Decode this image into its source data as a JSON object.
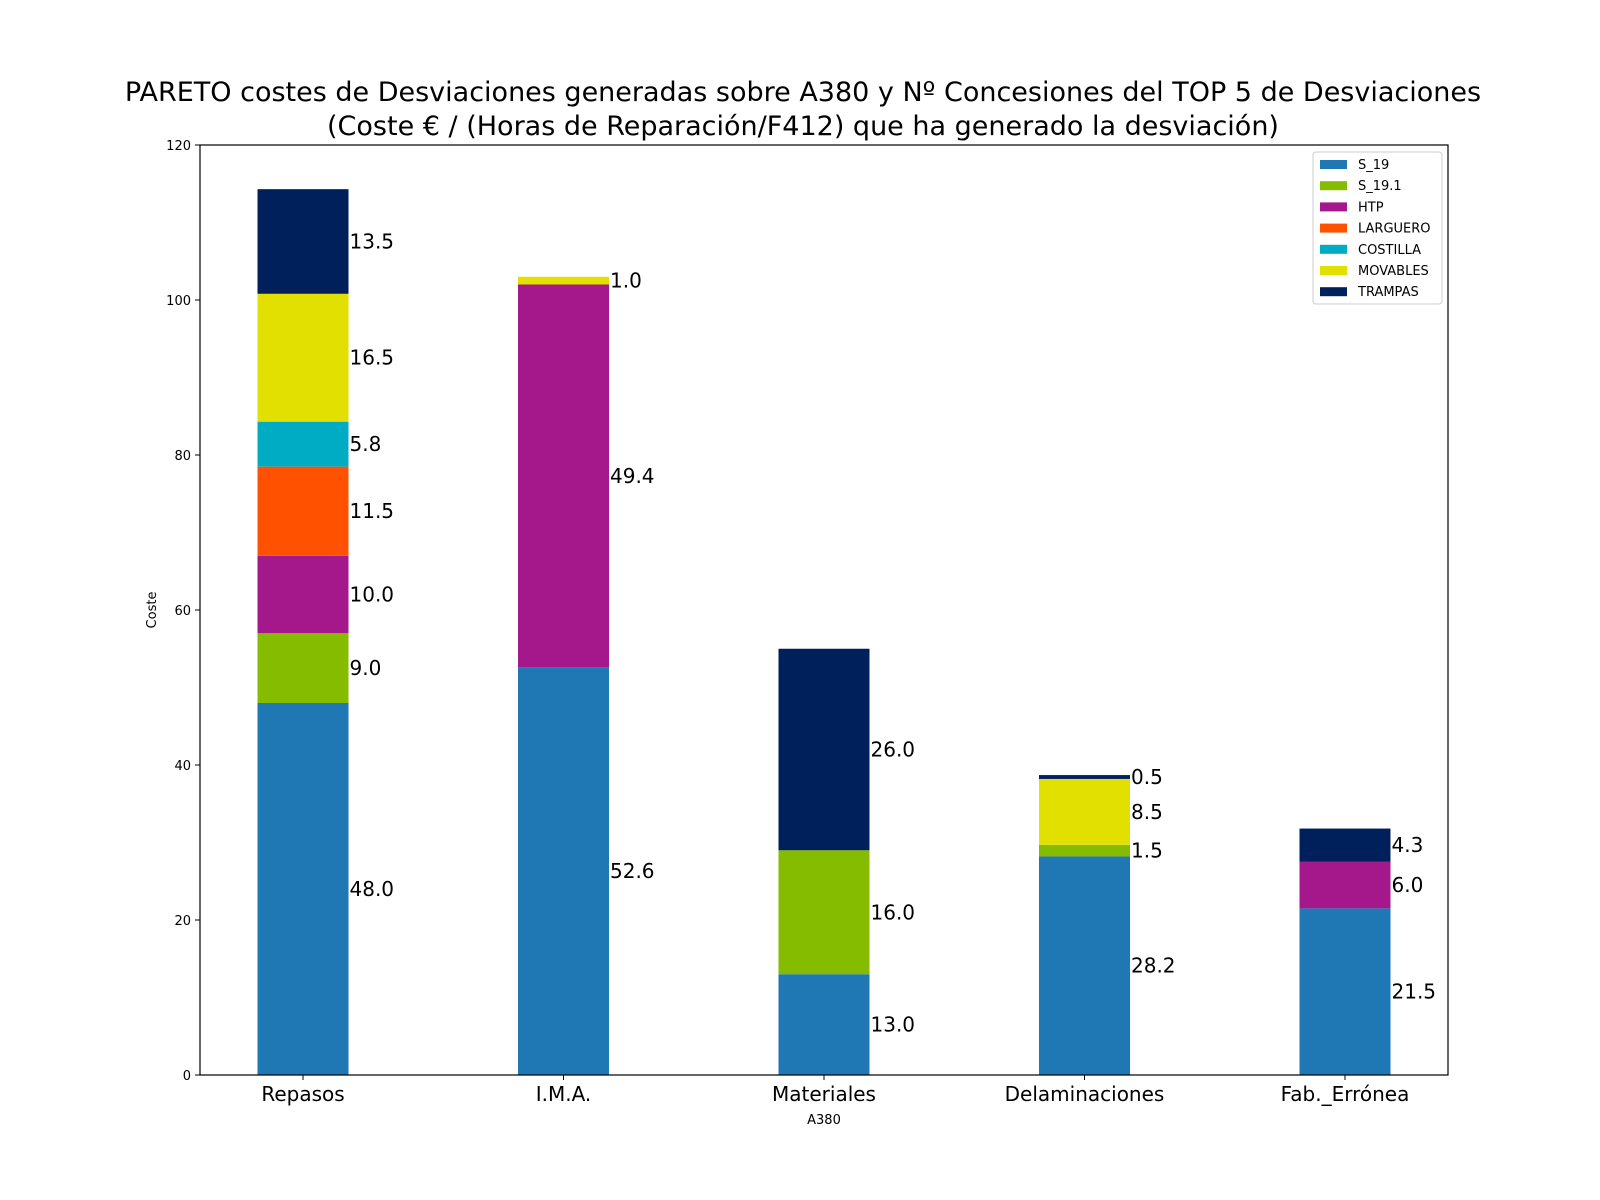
{
  "chart_data": {
    "type": "bar",
    "stacked": true,
    "title": "PARETO costes de Desviaciones  generadas sobre A380 y Nº Concesiones del TOP 5 de Desviaciones",
    "subtitle": "(Coste € / (Horas de Reparación/F412) que ha generado la desviación)",
    "xlabel": "A380",
    "ylabel": "Coste",
    "ylim": [
      0,
      120
    ],
    "yticks": [
      "0",
      "20",
      "40",
      "60",
      "80",
      "100",
      "120"
    ],
    "categories": [
      "Repasos",
      "I.M.A.",
      "Materiales",
      "Delaminaciones",
      "Fab._Errónea"
    ],
    "grid": false,
    "legend_position": "top-right",
    "series": [
      {
        "name": "S_19",
        "color": "#1f77b4",
        "values": [
          48.0,
          52.6,
          13.0,
          28.2,
          21.5
        ],
        "labels": [
          "48.0",
          "52.6",
          "13.0",
          "28.2",
          "21.5"
        ]
      },
      {
        "name": "S_19.1",
        "color": "#86bc00",
        "values": [
          9.0,
          0,
          16.0,
          1.5,
          0
        ],
        "labels": [
          "9.0",
          "",
          "16.0",
          "1.5",
          ""
        ]
      },
      {
        "name": "HTP",
        "color": "#a5188c",
        "values": [
          10.0,
          49.4,
          0,
          0,
          6.0
        ],
        "labels": [
          "10.0",
          "49.4",
          "",
          "",
          "6.0"
        ]
      },
      {
        "name": "LARGUERO",
        "color": "#ff5100",
        "values": [
          11.5,
          0,
          0,
          0,
          0
        ],
        "labels": [
          "11.5",
          "",
          "",
          "",
          ""
        ]
      },
      {
        "name": "COSTILLA",
        "color": "#00acc4",
        "values": [
          5.8,
          0,
          0,
          0,
          0
        ],
        "labels": [
          "5.8",
          "",
          "",
          "",
          ""
        ]
      },
      {
        "name": "MOVABLES",
        "color": "#e1e000",
        "values": [
          16.5,
          1.0,
          0,
          8.5,
          0
        ],
        "labels": [
          "16.5",
          "1.0",
          "",
          "8.5",
          ""
        ]
      },
      {
        "name": "TRAMPAS",
        "color": "#00205b",
        "values": [
          13.5,
          0,
          26.0,
          0.5,
          4.3
        ],
        "labels": [
          "13.5",
          "",
          "26.0",
          "0.5",
          "4.3"
        ]
      }
    ]
  }
}
